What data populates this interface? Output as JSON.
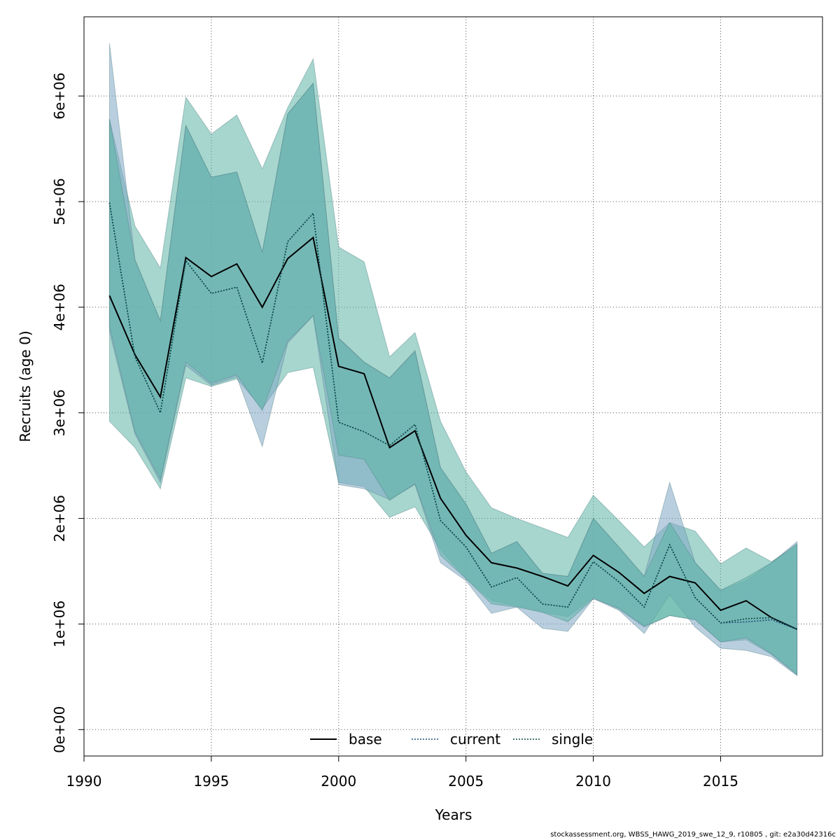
{
  "chart_data": {
    "type": "area",
    "xlabel": "Years",
    "ylabel": "Recruits (age 0)",
    "xlim": [
      1990,
      2019
    ],
    "ylim": [
      -250000,
      6750000
    ],
    "grid": true,
    "legend_position": "bottom-center",
    "x_ticks": [
      1990,
      1995,
      2000,
      2005,
      2010,
      2015
    ],
    "y_ticks": [
      0,
      1000000,
      2000000,
      3000000,
      4000000,
      5000000,
      6000000
    ],
    "y_tick_labels": [
      "0e+00",
      "1e+06",
      "2e+06",
      "3e+06",
      "4e+06",
      "5e+06",
      "6e+06"
    ],
    "x": [
      1991,
      1992,
      1993,
      1994,
      1995,
      1996,
      1997,
      1998,
      1999,
      2000,
      2001,
      2002,
      2003,
      2004,
      2005,
      2006,
      2007,
      2008,
      2009,
      2010,
      2011,
      2012,
      2013,
      2014,
      2015,
      2016,
      2017,
      2018
    ],
    "series": [
      {
        "name": "base",
        "line_style": "solid",
        "line_color": "#000000",
        "band_color": "#5cb5a6",
        "values": [
          4110000,
          3550000,
          3150000,
          4470000,
          4290000,
          4410000,
          4000000,
          4460000,
          4660000,
          3440000,
          3370000,
          2670000,
          2830000,
          2190000,
          1840000,
          1580000,
          1530000,
          1450000,
          1360000,
          1650000,
          1490000,
          1290000,
          1450000,
          1390000,
          1130000,
          1220000,
          1060000,
          950000
        ],
        "lower": [
          2920000,
          2670000,
          2280000,
          3330000,
          3250000,
          3320000,
          3040000,
          3380000,
          3430000,
          2340000,
          2300000,
          2010000,
          2110000,
          1700000,
          1430000,
          1220000,
          1170000,
          1110000,
          1070000,
          1250000,
          1140000,
          970000,
          1080000,
          1040000,
          830000,
          850000,
          710000,
          520000
        ],
        "upper": [
          5780000,
          4770000,
          4370000,
          5990000,
          5640000,
          5820000,
          5310000,
          5890000,
          6350000,
          4570000,
          4430000,
          3530000,
          3760000,
          2920000,
          2440000,
          2100000,
          2000000,
          1910000,
          1820000,
          2220000,
          1980000,
          1730000,
          1960000,
          1880000,
          1570000,
          1720000,
          1590000,
          1750000
        ]
      },
      {
        "name": "current",
        "line_style": "dotted",
        "line_color": "#1f4e79",
        "band_color": "#7fa8c4",
        "values": [
          4990000,
          3530000,
          3000000,
          4440000,
          4130000,
          4190000,
          3470000,
          4620000,
          4890000,
          2910000,
          2820000,
          2690000,
          2890000,
          1980000,
          1730000,
          1350000,
          1440000,
          1190000,
          1160000,
          1590000,
          1400000,
          1160000,
          1750000,
          1250000,
          1010000,
          1020000,
          1040000,
          950000
        ],
        "lower": [
          3770000,
          2800000,
          2340000,
          3450000,
          3260000,
          3340000,
          2680000,
          3660000,
          3920000,
          2320000,
          2280000,
          2180000,
          2320000,
          1580000,
          1410000,
          1100000,
          1160000,
          960000,
          930000,
          1240000,
          1130000,
          910000,
          1280000,
          970000,
          770000,
          750000,
          690000,
          510000
        ],
        "upper": [
          6500000,
          4450000,
          3870000,
          5720000,
          5230000,
          5280000,
          4520000,
          5830000,
          6120000,
          3710000,
          3480000,
          3330000,
          3590000,
          2480000,
          2130000,
          1670000,
          1780000,
          1480000,
          1450000,
          2000000,
          1730000,
          1450000,
          2340000,
          1580000,
          1320000,
          1410000,
          1580000,
          1780000
        ]
      },
      {
        "name": "single",
        "line_style": "dotted",
        "line_color": "#0b4a45",
        "band_color": "#5cb5a6",
        "values": [
          4990000,
          3530000,
          3000000,
          4440000,
          4130000,
          4190000,
          3470000,
          4620000,
          4890000,
          2910000,
          2820000,
          2690000,
          2890000,
          1980000,
          1730000,
          1350000,
          1440000,
          1190000,
          1160000,
          1590000,
          1400000,
          1160000,
          1750000,
          1250000,
          1010000,
          1050000,
          1060000,
          950000
        ],
        "lower": [
          3820000,
          2820000,
          2370000,
          3480000,
          3280000,
          3360000,
          3020000,
          3680000,
          3920000,
          2600000,
          2560000,
          2170000,
          2330000,
          1650000,
          1430000,
          1190000,
          1160000,
          1110000,
          1020000,
          1240000,
          1150000,
          980000,
          1080000,
          1040000,
          830000,
          870000,
          720000,
          520000
        ],
        "upper": [
          5780000,
          4450000,
          3870000,
          5720000,
          5230000,
          5280000,
          4520000,
          5830000,
          6120000,
          3700000,
          3480000,
          3330000,
          3580000,
          2480000,
          2140000,
          1670000,
          1780000,
          1480000,
          1450000,
          2000000,
          1730000,
          1450000,
          1960000,
          1580000,
          1320000,
          1440000,
          1580000,
          1760000
        ]
      }
    ]
  },
  "footer_text": "stockassessment.org, WBSS_HAWG_2019_swe_12_9, r10805 , git: e2a30d42316c"
}
